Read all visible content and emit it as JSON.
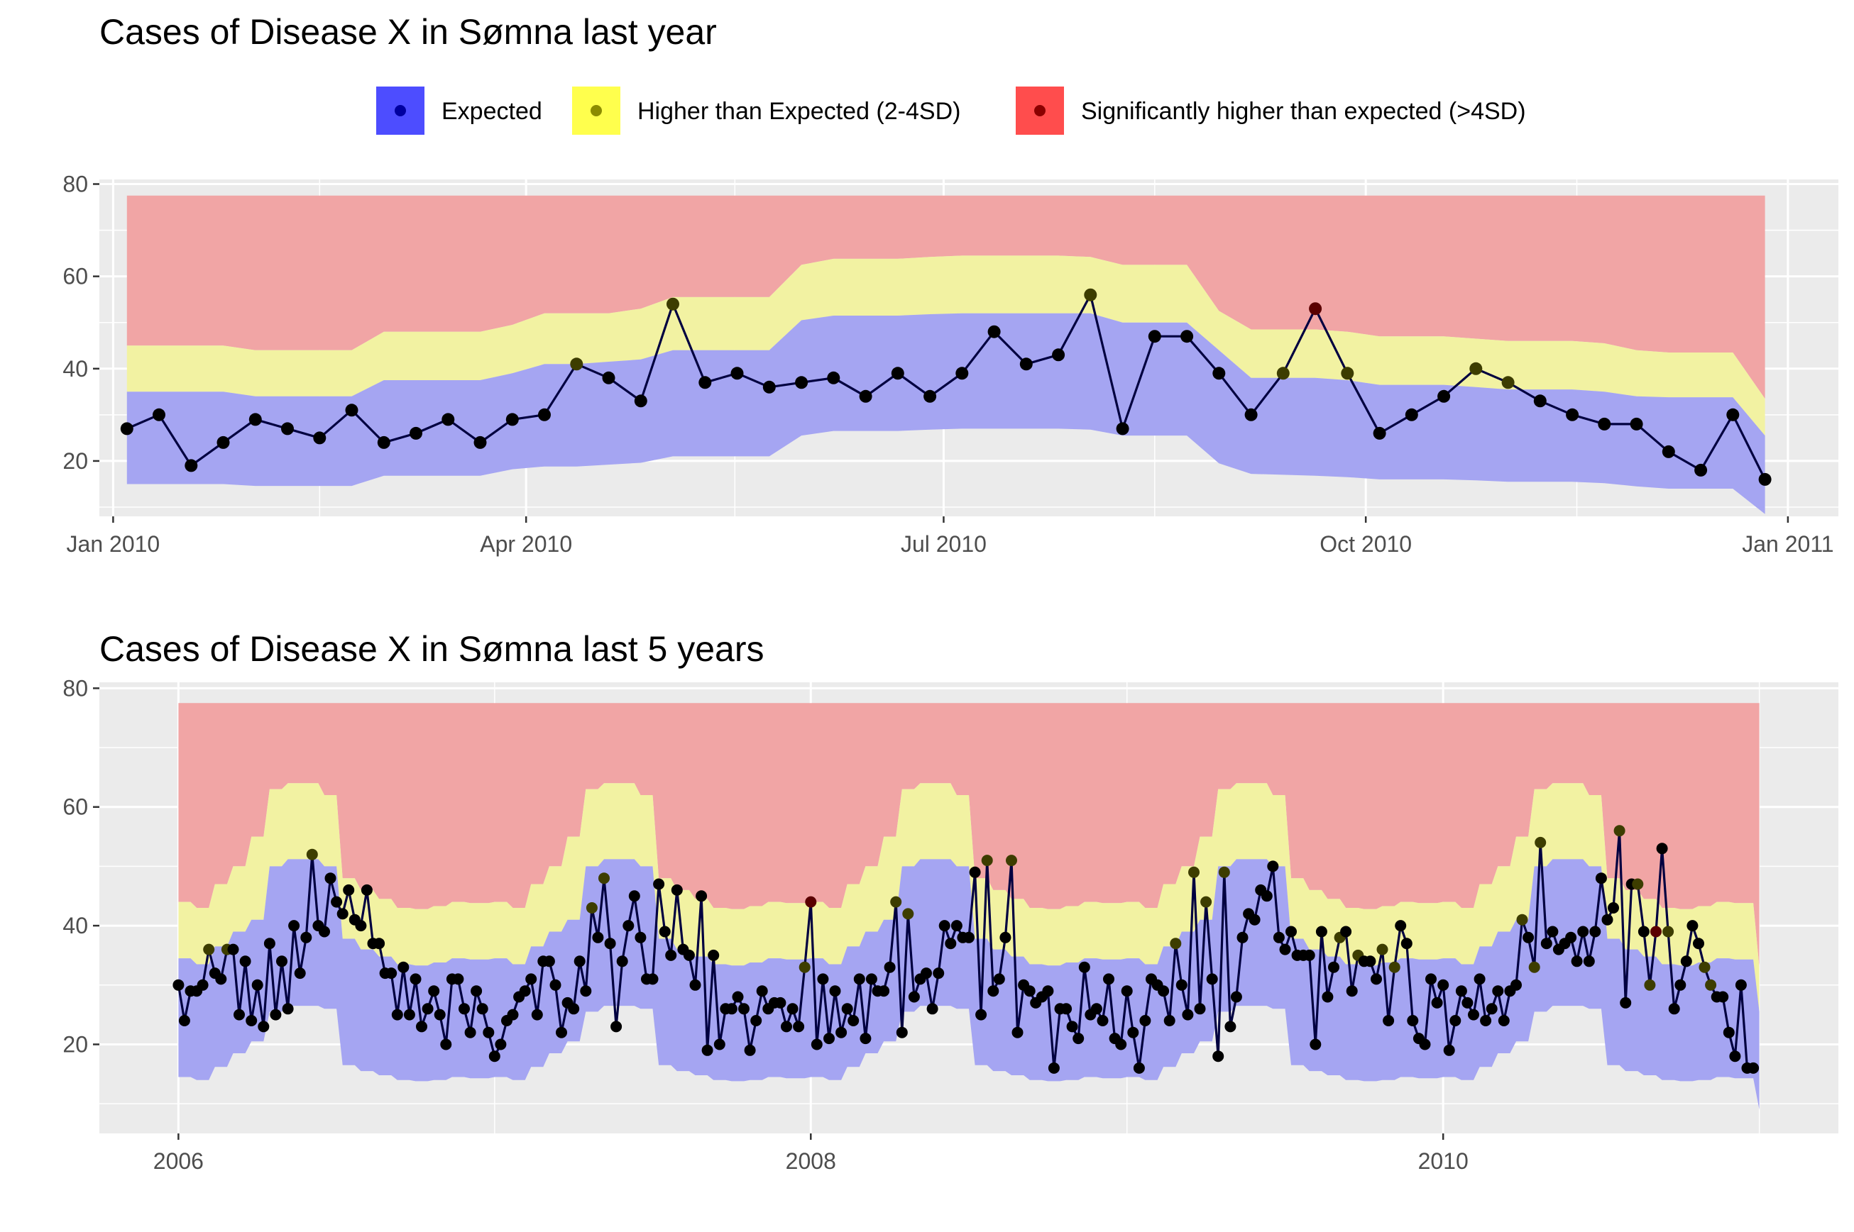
{
  "legend": {
    "items": [
      {
        "label": "Expected",
        "fill": "#4d4dff",
        "point": "#0000a0"
      },
      {
        "label": "Higher than Expected (2-4SD)",
        "fill": "#ffff4d",
        "point": "#8c8c00"
      },
      {
        "label": "Significantly higher than expected (>4SD)",
        "fill": "#ff4d4d",
        "point": "#8b0000"
      }
    ],
    "placement": "top"
  },
  "colors": {
    "panel_bg": "#ebebeb",
    "grid": "#ffffff",
    "band_expected": "#a5a5f2",
    "band_higher": "#f2f2a2",
    "band_significant": "#f1a5a5",
    "line": "#000040",
    "point_expected": "#000000",
    "point_higher": "#3d3d00",
    "point_significant": "#5a0000"
  },
  "chart_data": [
    {
      "type": "area",
      "title": "Cases of Disease X in Sømna last year",
      "xlabel": "",
      "ylabel": "",
      "ylim": [
        8,
        81
      ],
      "yticks": [
        20,
        40,
        60,
        80
      ],
      "xlim": [
        "2009-12-29",
        "2011-01-12"
      ],
      "xticks": [
        {
          "date": "2010-01-01",
          "label": "Jan 2010"
        },
        {
          "date": "2010-04-01",
          "label": "Apr 2010"
        },
        {
          "date": "2010-07-01",
          "label": "Jul 2010"
        },
        {
          "date": "2010-10-01",
          "label": "Oct 2010"
        },
        {
          "date": "2011-01-01",
          "label": "Jan 2011"
        }
      ],
      "grid": true,
      "top": 77.5,
      "dates": [
        "2010-01-04",
        "2010-01-11",
        "2010-01-18",
        "2010-01-25",
        "2010-02-01",
        "2010-02-08",
        "2010-02-15",
        "2010-02-22",
        "2010-03-01",
        "2010-03-08",
        "2010-03-15",
        "2010-03-22",
        "2010-03-29",
        "2010-04-05",
        "2010-04-12",
        "2010-04-19",
        "2010-04-26",
        "2010-05-03",
        "2010-05-10",
        "2010-05-17",
        "2010-05-24",
        "2010-05-31",
        "2010-06-07",
        "2010-06-14",
        "2010-06-21",
        "2010-06-28",
        "2010-07-05",
        "2010-07-12",
        "2010-07-19",
        "2010-07-26",
        "2010-08-02",
        "2010-08-09",
        "2010-08-16",
        "2010-08-23",
        "2010-08-30",
        "2010-09-06",
        "2010-09-13",
        "2010-09-20",
        "2010-09-27",
        "2010-10-04",
        "2010-10-11",
        "2010-10-18",
        "2010-10-25",
        "2010-11-01",
        "2010-11-08",
        "2010-11-15",
        "2010-11-22",
        "2010-11-29",
        "2010-12-06",
        "2010-12-13",
        "2010-12-20",
        "2010-12-27"
      ],
      "cases": [
        27,
        30,
        19,
        24,
        29,
        27,
        25,
        31,
        24,
        26,
        29,
        24,
        29,
        30,
        41,
        38,
        33,
        54,
        37,
        39,
        36,
        37,
        38,
        34,
        39,
        34,
        39,
        48,
        41,
        43,
        56,
        27,
        47,
        47,
        39,
        30,
        39,
        53,
        39,
        26,
        30,
        34,
        40,
        37,
        33,
        30,
        28,
        28,
        22,
        18,
        30,
        16
      ],
      "status": [
        "E",
        "E",
        "E",
        "E",
        "E",
        "E",
        "E",
        "E",
        "E",
        "E",
        "E",
        "E",
        "E",
        "E",
        "H",
        "E",
        "E",
        "H",
        "E",
        "E",
        "E",
        "E",
        "E",
        "E",
        "E",
        "E",
        "E",
        "E",
        "E",
        "E",
        "H",
        "E",
        "E",
        "E",
        "E",
        "E",
        "H",
        "S",
        "H",
        "E",
        "E",
        "E",
        "H",
        "H",
        "E",
        "E",
        "E",
        "E",
        "E",
        "E",
        "E",
        "E"
      ],
      "lower": [
        15,
        15,
        15,
        15,
        14.6,
        14.6,
        14.6,
        14.6,
        16.8,
        16.8,
        16.8,
        16.8,
        18.2,
        18.8,
        18.8,
        19.2,
        19.6,
        21,
        21,
        21,
        21,
        25.5,
        26.5,
        26.5,
        26.5,
        26.8,
        27,
        27,
        27,
        27,
        26.8,
        25.5,
        25.5,
        25.5,
        19.5,
        17.2,
        17,
        16.8,
        16.5,
        16,
        16,
        16,
        15.8,
        15.5,
        15.5,
        15.5,
        15.2,
        14.5,
        14,
        14,
        14,
        8.5
      ],
      "expected_upper": [
        35,
        35,
        35,
        35,
        34,
        34,
        34,
        34,
        37.5,
        37.5,
        37.5,
        37.5,
        39,
        41,
        41,
        41.5,
        42,
        44,
        44,
        44,
        44,
        50.5,
        51.5,
        51.5,
        51.5,
        51.8,
        52,
        52,
        52,
        52,
        52,
        50,
        50,
        50,
        44,
        38,
        38,
        38,
        37.5,
        36.5,
        36.5,
        36.5,
        36,
        35.5,
        35.5,
        35.5,
        35,
        34,
        33.8,
        33.8,
        33.8,
        25.5
      ],
      "higher_upper": [
        45,
        45,
        45,
        45,
        44,
        44,
        44,
        44,
        48,
        48,
        48,
        48,
        49.5,
        52,
        52,
        52,
        53,
        55.5,
        55.5,
        55.5,
        55.5,
        62.5,
        63.8,
        63.8,
        63.8,
        64.2,
        64.5,
        64.5,
        64.5,
        64.5,
        64.2,
        62.5,
        62.5,
        62.5,
        52.5,
        48.5,
        48.5,
        48.5,
        48,
        47,
        47,
        47,
        46.5,
        46,
        46,
        46,
        45.5,
        44,
        43.5,
        43.5,
        43.5,
        33.5
      ]
    },
    {
      "type": "area",
      "title": "Cases of Disease X in Sømna last 5 years",
      "xlabel": "",
      "ylabel": "",
      "ylim": [
        5,
        81
      ],
      "yticks": [
        20,
        40,
        60,
        80
      ],
      "xlim": [
        2005.75,
        2011.25
      ],
      "xticks": [
        {
          "year": 2006,
          "label": "2006"
        },
        {
          "year": 2008,
          "label": "2008"
        },
        {
          "year": 2010,
          "label": "2010"
        }
      ],
      "grid": true,
      "top": 77.5,
      "weeks_per_year": 52,
      "start_year": 2006,
      "cases": [
        [
          30,
          24,
          29,
          29,
          30,
          36,
          32,
          31,
          36,
          36,
          25,
          34,
          24,
          30,
          23,
          37,
          25,
          34,
          26,
          40,
          32,
          38,
          52,
          40,
          39,
          48,
          44,
          42,
          46,
          41,
          40,
          46,
          37,
          37,
          32,
          32,
          25,
          33,
          25,
          31,
          23,
          26,
          29,
          25,
          20,
          31,
          31,
          26,
          22,
          29,
          26,
          22
        ],
        [
          18,
          20,
          24,
          25,
          28,
          29,
          31,
          25,
          34,
          34,
          30,
          22,
          27,
          26,
          34,
          29,
          43,
          38,
          48,
          37,
          23,
          34,
          40,
          45,
          38,
          31,
          31,
          47,
          39,
          35,
          46,
          36,
          35,
          30,
          45,
          19,
          35,
          20,
          26,
          26,
          28,
          26,
          19,
          24,
          29,
          26,
          27,
          27,
          23,
          26,
          23,
          33
        ],
        [
          44,
          20,
          31,
          21,
          29,
          22,
          26,
          24,
          31,
          21,
          31,
          29,
          29,
          33,
          44,
          22,
          42,
          28,
          31,
          32,
          26,
          32,
          40,
          37,
          40,
          38,
          38,
          49,
          25,
          51,
          29,
          31,
          38,
          51,
          22,
          30,
          29,
          27,
          28,
          29,
          16,
          26,
          26,
          23,
          21,
          33,
          25,
          26,
          24,
          31,
          21,
          20
        ],
        [
          29,
          22,
          16,
          24,
          31,
          30,
          29,
          24,
          37,
          30,
          25,
          49,
          26,
          44,
          31,
          18,
          49,
          23,
          28,
          38,
          42,
          41,
          46,
          45,
          50,
          38,
          36,
          39,
          35,
          35,
          35,
          20,
          39,
          28,
          33,
          38,
          39,
          29,
          35,
          34,
          34,
          31,
          36,
          24,
          33,
          40,
          37,
          24,
          21,
          20,
          31,
          27
        ],
        [
          30,
          19,
          24,
          29,
          27,
          25,
          31,
          24,
          26,
          29,
          24,
          29,
          30,
          41,
          38,
          33,
          54,
          37,
          39,
          36,
          37,
          38,
          34,
          39,
          34,
          39,
          48,
          41,
          43,
          56,
          27,
          47,
          47,
          39,
          30,
          39,
          53,
          39,
          26,
          30,
          34,
          40,
          37,
          33,
          30,
          28,
          28,
          22,
          18,
          30,
          16,
          16
        ]
      ],
      "status": [
        "EEEEEHEEHEEEEEEEEEEEEEHEEEEEEEEEEEEEEEEEEEEEEEEEEEEE",
        "EEEEEEEEEEEEEEEEHEHEEEEEEEEEEEEEEEEEEEEEEEEEEEEEEEEH",
        "SEEEEEEEEEEEEEHEHEEEEEEEEEEEEHEEEHEEEEEEEEEEEEEEEEEE",
        "EEEEEEEEHEEHEHEEHEEEEEEEEEEEEEEEEEEHEEHEEEHEHEEEEEEE",
        "EEEEEEEEEEEEEHEHHEEEEEEEEEEEEHEEHEHSEHEEEEEHHEEEEEEE"
      ],
      "lower_year": [
        14.5,
        14.5,
        14.5,
        14,
        14,
        14,
        16.2,
        16.2,
        16.2,
        18.5,
        18.5,
        18.5,
        20.5,
        20.5,
        20.5,
        25.5,
        25.5,
        25.5,
        26.5,
        26.5,
        26.5,
        26.5,
        26.5,
        26.5,
        26,
        26,
        26,
        16.5,
        16.5,
        16.5,
        15.5,
        15.5,
        15.5,
        14.8,
        14.8,
        14.8,
        14,
        14,
        14,
        13.8,
        13.8,
        13.8,
        14,
        14,
        14,
        14.5,
        14.5,
        14.5,
        14.3,
        14.3,
        14.3,
        14.3
      ],
      "expected_upper_year": [
        34.5,
        34.5,
        34.5,
        33.5,
        33.5,
        33.5,
        36.5,
        36.5,
        36.5,
        39,
        39,
        39,
        41,
        41,
        41,
        50,
        50,
        50,
        51.2,
        51.2,
        51.2,
        51.2,
        51.2,
        51.2,
        50,
        50,
        50,
        37.8,
        37.8,
        37.8,
        36,
        36,
        36,
        34.8,
        34.8,
        34.8,
        33.5,
        33.5,
        33.5,
        33.3,
        33.3,
        33.3,
        33.8,
        33.8,
        33.8,
        34.5,
        34.5,
        34.5,
        34.3,
        34.3,
        34.3,
        34.3
      ],
      "higher_upper_year": [
        44,
        44,
        44,
        43,
        43,
        43,
        47,
        47,
        47,
        50,
        50,
        50,
        55,
        55,
        55,
        63,
        63,
        63,
        64,
        64,
        64,
        64,
        64,
        64,
        62,
        62,
        62,
        48,
        48,
        48,
        46,
        46,
        46,
        44.5,
        44.5,
        44.5,
        43,
        43,
        43,
        42.8,
        42.8,
        42.8,
        43.3,
        43.3,
        43.3,
        44,
        44,
        44,
        43.8,
        43.8,
        43.8,
        43.8
      ],
      "end_band": {
        "lower": 9,
        "expected_upper": 25.5,
        "higher_upper": 33
      }
    }
  ]
}
